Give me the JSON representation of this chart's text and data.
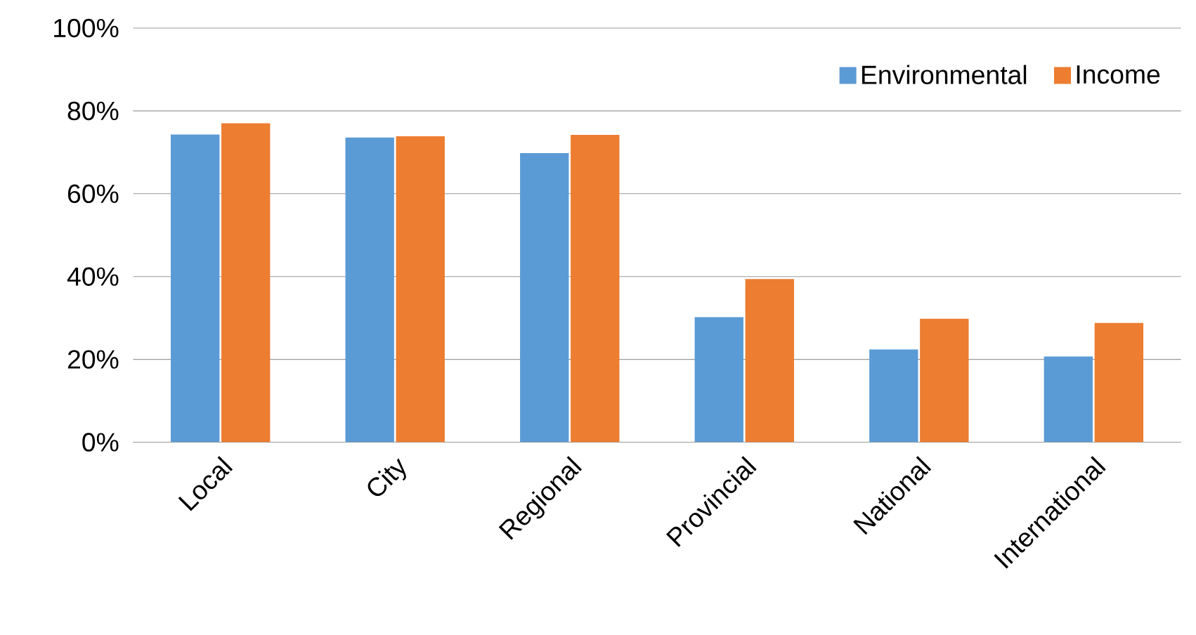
{
  "chart_data": {
    "type": "bar",
    "categories": [
      "Local",
      "City",
      "Regional",
      "Provincial",
      "National",
      "International"
    ],
    "series": [
      {
        "name": "Environmental",
        "color": "#5b9bd5",
        "values": [
          74.3,
          73.6,
          69.8,
          30.2,
          22.4,
          20.7
        ]
      },
      {
        "name": "Income",
        "color": "#ed7d31",
        "values": [
          77,
          73.9,
          74.2,
          39.4,
          29.8,
          28.8
        ]
      }
    ],
    "ylim": [
      0,
      100
    ],
    "yticks": [
      {
        "value": 0,
        "label": "0%"
      },
      {
        "value": 20,
        "label": "20%"
      },
      {
        "value": 40,
        "label": "40%"
      },
      {
        "value": 60,
        "label": "60%"
      },
      {
        "value": 80,
        "label": "80%"
      },
      {
        "value": 100,
        "label": "100%"
      }
    ],
    "grid": "y",
    "legend": "top right"
  }
}
